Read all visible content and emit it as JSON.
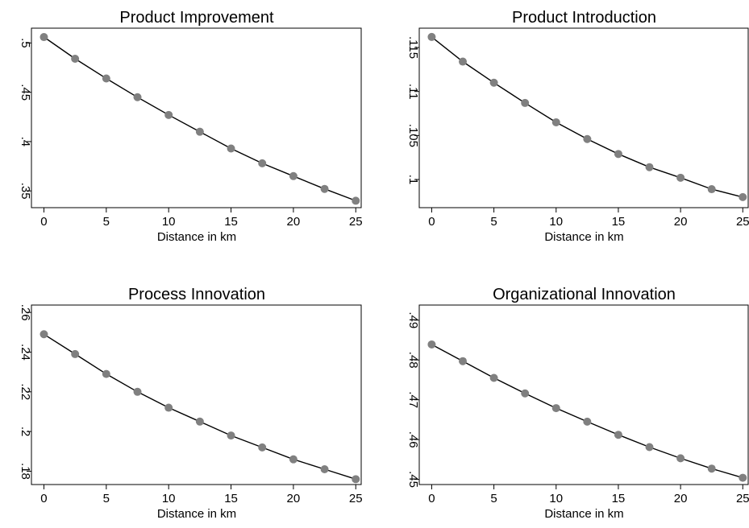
{
  "style": {
    "line_color": "#000000",
    "marker_color": "#808080",
    "background": "#ffffff",
    "frame_color": "#000000"
  },
  "chart_data": [
    {
      "type": "line",
      "title": "Product Improvement",
      "xlabel": "Distance in km",
      "ylabel": "",
      "x": [
        0,
        2.5,
        5,
        7.5,
        10,
        12.5,
        15,
        17.5,
        20,
        22.5,
        25
      ],
      "series": [
        {
          "values": [
            0.506,
            0.484,
            0.464,
            0.445,
            0.427,
            0.41,
            0.393,
            0.378,
            0.365,
            0.352,
            0.34
          ]
        }
      ],
      "xticks": [
        "0",
        "5",
        "10",
        "15",
        "20",
        "25"
      ],
      "xtick_values": [
        0,
        5,
        10,
        15,
        20,
        25
      ],
      "yticks": [
        ".35",
        ".4",
        ".45",
        ".5"
      ],
      "ytick_values": [
        0.35,
        0.4,
        0.45,
        0.5
      ],
      "xlim": [
        -1,
        25.5
      ],
      "ylim": [
        0.333,
        0.515
      ],
      "grid": false,
      "legend": "none"
    },
    {
      "type": "line",
      "title": "Product Introduction",
      "xlabel": "Distance in km",
      "ylabel": "",
      "x": [
        0,
        2.5,
        5,
        7.5,
        10,
        12.5,
        15,
        17.5,
        20,
        22.5,
        25
      ],
      "series": [
        {
          "values": [
            0.1162,
            0.1134,
            0.111,
            0.1087,
            0.1065,
            0.1046,
            0.1029,
            0.1014,
            0.1002,
            0.0989,
            0.098
          ]
        }
      ],
      "xticks": [
        "0",
        "5",
        "10",
        "15",
        "20",
        "25"
      ],
      "xtick_values": [
        0,
        5,
        10,
        15,
        20,
        25
      ],
      "yticks": [
        ".1",
        ".105",
        ".11",
        ".115"
      ],
      "yticks_values_note": "",
      "ytick_values": [
        0.1,
        0.105,
        0.11,
        0.115
      ],
      "xlim": [
        -1,
        25.5
      ],
      "ylim": [
        0.0968,
        0.1172
      ],
      "grid": false,
      "legend": "none"
    },
    {
      "type": "line",
      "title": "Process Innovation",
      "xlabel": "Distance in km",
      "ylabel": "",
      "x": [
        0,
        2.5,
        5,
        7.5,
        10,
        12.5,
        15,
        17.5,
        20,
        22.5,
        25
      ],
      "series": [
        {
          "values": [
            0.249,
            0.239,
            0.229,
            0.22,
            0.212,
            0.205,
            0.198,
            0.192,
            0.186,
            0.181,
            0.176
          ]
        }
      ],
      "xticks": [
        "0",
        "5",
        "10",
        "15",
        "20",
        "25"
      ],
      "xtick_values": [
        0,
        5,
        10,
        15,
        20,
        25
      ],
      "yticks": [
        ".18",
        ".2",
        ".22",
        ".24",
        ".26"
      ],
      "ytick_values": [
        0.18,
        0.2,
        0.22,
        0.24,
        0.26
      ],
      "xlim": [
        -1,
        25.5
      ],
      "ylim": [
        0.1733,
        0.2637
      ],
      "grid": false,
      "legend": "none"
    },
    {
      "type": "line",
      "title": "Organizational Innovation",
      "xlabel": "Distance in km",
      "ylabel": "",
      "x": [
        0,
        2.5,
        5,
        7.5,
        10,
        12.5,
        15,
        17.5,
        20,
        22.5,
        25
      ],
      "series": [
        {
          "values": [
            0.4839,
            0.4797,
            0.4755,
            0.4716,
            0.4679,
            0.4645,
            0.4612,
            0.4581,
            0.4553,
            0.4527,
            0.4504
          ]
        }
      ],
      "xticks": [
        "0",
        "5",
        "10",
        "15",
        "20",
        "25"
      ],
      "xtick_values": [
        0,
        5,
        10,
        15,
        20,
        25
      ],
      "yticks": [
        ".45",
        ".46",
        ".47",
        ".48",
        ".49"
      ],
      "ytick_values": [
        0.45,
        0.46,
        0.47,
        0.48,
        0.49
      ],
      "xlim": [
        -1,
        25.5
      ],
      "ylim": [
        0.4487,
        0.4938
      ],
      "grid": false,
      "legend": "none"
    }
  ]
}
